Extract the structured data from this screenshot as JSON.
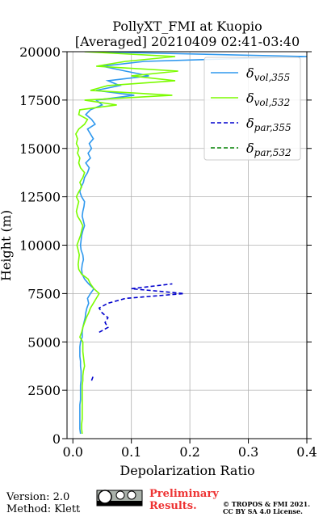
{
  "chart_data": {
    "type": "profile",
    "title": "PollyXT_FMI at Kuopio",
    "subtitle": "[Averaged] 20210409 02:41-03:40",
    "xlabel": "Depolarization Ratio",
    "ylabel": "Height (m)",
    "xlim": [
      -0.01,
      0.4
    ],
    "ylim": [
      0,
      20000
    ],
    "xticks": [
      {
        "value": 0,
        "label": "0.0"
      },
      0.1,
      0.2,
      0.3,
      0.4
    ],
    "yticks": [
      0,
      2500,
      5000,
      7500,
      10000,
      12500,
      15000,
      17500,
      20000
    ],
    "grid": true,
    "legend": "upper right",
    "x": [
      250,
      500,
      750,
      1000,
      1250,
      1500,
      1750,
      2000,
      2250,
      2500,
      2750,
      3000,
      3250,
      3500,
      3750,
      4000,
      4250,
      4500,
      4750,
      5000,
      5250,
      5500,
      5750,
      6000,
      6250,
      6500,
      6750,
      7000,
      7250,
      7500,
      7750,
      8000,
      8250,
      8500,
      8750,
      9000,
      9250,
      9500,
      9750,
      10000,
      10250,
      10500,
      10750,
      11000,
      11250,
      11500,
      11750,
      12000,
      12250,
      12500,
      12750,
      13000,
      13250,
      13500,
      13750,
      14000,
      14250,
      14500,
      14750,
      15000,
      15250,
      15500,
      15750,
      16000,
      16250,
      16500,
      16750,
      17000,
      17250,
      17500,
      17750,
      18000,
      18250,
      18500,
      18750,
      19000,
      19250,
      19500,
      19750,
      20000
    ],
    "series": [
      {
        "name": "δvol,355",
        "color": "#2f98ee",
        "linestyle": "solid",
        "values": [
          0.013,
          0.012,
          0.012,
          0.012,
          0.012,
          0.012,
          0.012,
          0.013,
          0.013,
          0.013,
          0.013,
          0.014,
          0.014,
          0.014,
          0.013,
          0.013,
          0.012,
          0.012,
          0.012,
          0.013,
          0.016,
          0.016,
          0.017,
          0.019,
          0.021,
          0.022,
          0.024,
          0.027,
          0.025,
          0.03,
          0.036,
          0.027,
          0.02,
          0.016,
          0.015,
          0.016,
          0.018,
          0.017,
          0.014,
          0.013,
          0.014,
          0.015,
          0.017,
          0.02,
          0.018,
          0.016,
          0.017,
          0.019,
          0.02,
          0.015,
          0.012,
          0.014,
          0.018,
          0.02,
          0.025,
          0.028,
          0.022,
          0.03,
          0.026,
          0.032,
          0.028,
          0.035,
          0.03,
          0.025,
          0.038,
          0.032,
          0.022,
          0.03,
          0.05,
          0.04,
          0.105,
          0.04,
          0.08,
          0.06,
          0.13,
          0.09,
          0.05,
          0.122,
          0.4,
          0.03
        ]
      },
      {
        "name": "δvol,532",
        "color": "#7cfc00",
        "linestyle": "solid",
        "values": [
          0.016,
          0.015,
          0.015,
          0.016,
          0.016,
          0.016,
          0.016,
          0.016,
          0.016,
          0.016,
          0.016,
          0.017,
          0.017,
          0.018,
          0.02,
          0.019,
          0.018,
          0.017,
          0.017,
          0.017,
          0.012,
          0.015,
          0.017,
          0.02,
          0.023,
          0.027,
          0.03,
          0.035,
          0.04,
          0.045,
          0.036,
          0.03,
          0.026,
          0.015,
          0.01,
          0.009,
          0.01,
          0.011,
          0.009,
          0.007,
          0.01,
          0.013,
          0.015,
          0.017,
          0.013,
          0.008,
          0.006,
          0.008,
          0.01,
          0.006,
          0.01,
          0.015,
          0.012,
          0.017,
          0.02,
          0.013,
          0.01,
          0.012,
          0.008,
          0.01,
          0.006,
          0.008,
          0.005,
          0.01,
          0.02,
          0.025,
          0.01,
          0.012,
          0.075,
          0.02,
          0.17,
          0.03,
          0.06,
          0.175,
          0.1,
          0.18,
          0.04,
          0.09,
          0.175,
          0.02
        ]
      },
      {
        "name": "δpar,355",
        "color": "#0000cd",
        "linestyle": "dashed",
        "values": [
          null,
          null,
          null,
          null,
          null,
          null,
          null,
          null,
          null,
          null,
          null,
          0.032,
          0.035,
          null,
          null,
          null,
          null,
          null,
          null,
          null,
          null,
          0.045,
          0.06,
          0.055,
          0.06,
          0.05,
          0.045,
          0.06,
          0.09,
          0.19,
          0.1,
          0.17,
          null,
          null,
          null,
          null,
          null,
          null,
          null,
          null,
          null,
          null,
          null,
          null,
          null,
          null,
          null,
          null,
          null,
          null,
          null,
          null,
          null,
          null,
          null,
          null,
          null,
          null,
          null,
          null,
          null,
          null,
          null,
          null,
          null,
          null,
          null,
          null,
          null,
          null,
          null,
          null,
          null,
          null,
          null,
          null,
          null,
          null,
          null,
          null
        ]
      },
      {
        "name": "δpar,532",
        "color": "#008000",
        "linestyle": "dashed",
        "values": [
          null,
          null,
          null,
          null,
          null,
          null,
          null,
          null,
          null,
          null,
          null,
          null,
          null,
          null,
          null,
          null,
          null,
          null,
          null,
          null,
          null,
          null,
          null,
          null,
          null,
          null,
          null,
          null,
          null,
          null,
          null,
          null,
          null,
          null,
          null,
          null,
          null,
          null,
          null,
          null,
          null,
          null,
          null,
          null,
          null,
          null,
          null,
          null,
          null,
          null,
          null,
          null,
          null,
          null,
          null,
          null,
          null,
          null,
          null,
          null,
          null,
          null,
          null,
          null,
          null,
          null,
          null,
          null,
          null,
          null,
          null,
          null,
          null,
          null,
          null,
          null,
          null,
          null,
          null,
          null
        ]
      }
    ]
  },
  "footer": {
    "version": "Version: 2.0",
    "method": "Method: Klett",
    "preliminary": "Preliminary",
    "results": "Results.",
    "copyright": "© TROPOS & FMI 2021.",
    "license": "CC BY SA 4.0 License."
  }
}
